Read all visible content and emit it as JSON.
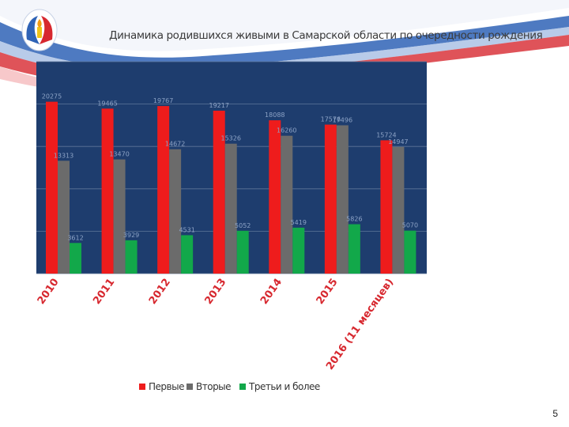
{
  "slide": {
    "title": "Динамика родившихся живыми в Самарской  области по очередности рождения",
    "page_number": "5"
  },
  "colors": {
    "plot_background": "#1e3d6e",
    "series_first": "#ee1c1c",
    "series_second": "#6b6b6b",
    "series_third": "#12a84a",
    "flag_blue": "#2f63b6",
    "flag_red": "#d7282f"
  },
  "chart_data": {
    "type": "bar",
    "categories": [
      "2010",
      "2011",
      "2012",
      "2013",
      "2014",
      "2015",
      "2016 (11 месяцев)"
    ],
    "series": [
      {
        "name": "Первые",
        "values": [
          20275,
          19465,
          19767,
          19217,
          18088,
          17576,
          15724
        ],
        "labels": [
          "20275",
          "19465",
          "19767",
          "19217",
          "18088",
          "17576",
          "15724"
        ]
      },
      {
        "name": "Вторые",
        "values": [
          13313,
          13470,
          14672,
          15326,
          16260,
          17496,
          14947
        ],
        "labels": [
          "13313",
          "13470",
          "14672",
          "15326",
          "16260",
          "17496",
          "14947"
        ]
      },
      {
        "name": "Третьи и более",
        "values": [
          3612,
          3929,
          4531,
          5052,
          5419,
          5826,
          5070
        ],
        "labels": [
          "3612",
          "3929",
          "4531",
          "5052",
          "5419",
          "5826",
          "5070"
        ]
      }
    ],
    "ylim": [
      0,
      25000
    ],
    "grid": true,
    "legend_position": "bottom"
  }
}
